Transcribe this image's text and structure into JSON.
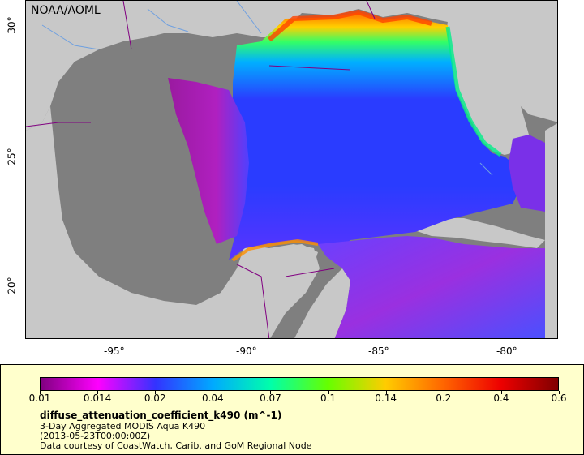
{
  "map": {
    "credit": "NOAA/AOML",
    "longitude_ticks": [
      "-95°",
      "-90°",
      "-85°",
      "-80°"
    ],
    "latitude_ticks": [
      "30°",
      "25°",
      "20°"
    ],
    "colors": {
      "land": "#c8c8c8",
      "no_data_water": "#7f7f7f",
      "border": "#800080",
      "river": "#6fa0e0"
    }
  },
  "legend": {
    "scale_labels": [
      "0.01",
      "0.014",
      "0.02",
      "0.04",
      "0.07",
      "0.1",
      "0.14",
      "0.2",
      "0.4",
      "0.6"
    ],
    "colors": [
      "#800080",
      "#ff00ff",
      "#3333ff",
      "#00aaff",
      "#00ffaa",
      "#66ff00",
      "#ffcc00",
      "#ff6600",
      "#ee0000",
      "#800000"
    ],
    "title": "diffuse_attenuation_coefficient_k490 (m^-1)",
    "subtitle": "3-Day Aggregated MODIS Aqua K490",
    "date": "(2013-05-23T00:00:00Z)",
    "source": "Data courtesy of CoastWatch, Carib. and GoM Regional Node"
  }
}
